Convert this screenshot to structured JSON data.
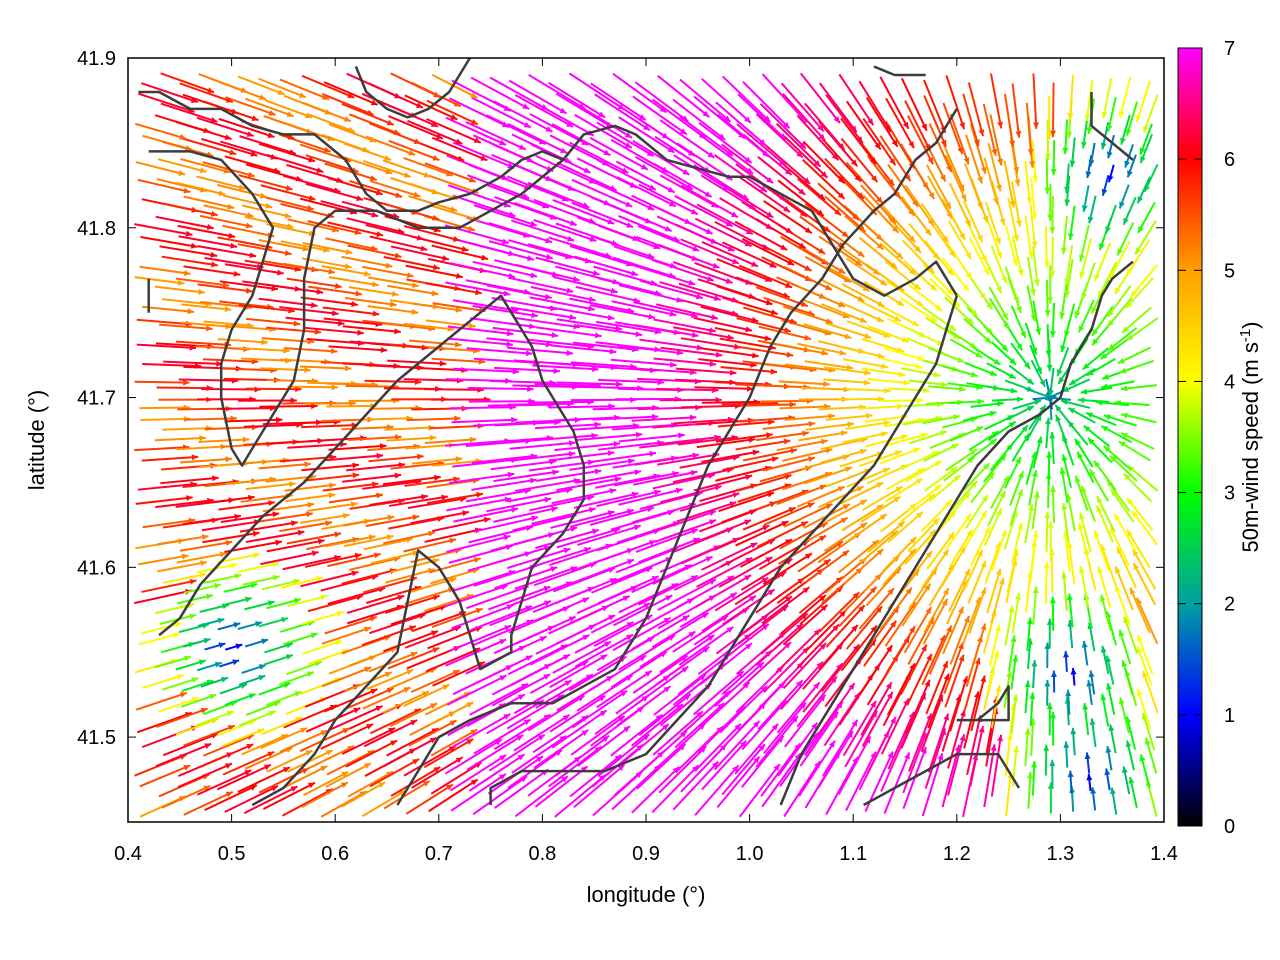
{
  "chart_data": {
    "type": "vector-field",
    "title": "",
    "xlabel": "longitude (°)",
    "ylabel": "latitude (°)",
    "xlim": [
      0.4,
      1.4
    ],
    "ylim": [
      41.45,
      41.9
    ],
    "xticks": [
      "0.4",
      "0.5",
      "0.6",
      "0.7",
      "0.8",
      "0.9",
      "1.0",
      "1.1",
      "1.2",
      "1.3",
      "1.4"
    ],
    "yticks": [
      "41.5",
      "41.6",
      "41.7",
      "41.8",
      "41.9"
    ],
    "colorbar": {
      "label": "50m-wind speed (m s",
      "label_sup": "-1",
      "label_end": ")",
      "range": [
        0,
        7
      ],
      "ticks": [
        "0",
        "1",
        "2",
        "3",
        "4",
        "5",
        "6",
        "7"
      ],
      "palette": [
        "#000000",
        "#0000ff",
        "#00a0a0",
        "#00ff00",
        "#ffff00",
        "#ffa000",
        "#ff0000",
        "#ff00ff"
      ]
    },
    "wind_field": {
      "convergence_center": [
        1.29,
        41.7
      ],
      "secondary_calm_centers": [
        [
          1.31,
          41.53
        ],
        [
          1.33,
          41.47
        ],
        [
          1.35,
          41.84
        ],
        [
          0.49,
          41.55
        ]
      ],
      "max_speed": 7,
      "grid_step_deg": [
        0.02,
        0.012
      ]
    },
    "contours": [
      [
        [
          0.41,
          41.88
        ],
        [
          0.43,
          41.88
        ],
        [
          0.46,
          41.87
        ],
        [
          0.49,
          41.87
        ],
        [
          0.52,
          41.86
        ],
        [
          0.55,
          41.855
        ],
        [
          0.58,
          41.855
        ],
        [
          0.61,
          41.84
        ],
        [
          0.63,
          41.82
        ],
        [
          0.65,
          41.81
        ],
        [
          0.68,
          41.81
        ],
        [
          0.7,
          41.815
        ],
        [
          0.73,
          41.82
        ],
        [
          0.76,
          41.83
        ],
        [
          0.78,
          41.84
        ],
        [
          0.8,
          41.845
        ],
        [
          0.82,
          41.84
        ],
        [
          0.84,
          41.855
        ],
        [
          0.87,
          41.86
        ],
        [
          0.89,
          41.855
        ],
        [
          0.92,
          41.84
        ],
        [
          0.95,
          41.835
        ],
        [
          0.98,
          41.83
        ],
        [
          1.0,
          41.83
        ],
        [
          1.03,
          41.82
        ],
        [
          1.06,
          41.81
        ],
        [
          1.08,
          41.79
        ],
        [
          1.1,
          41.77
        ],
        [
          1.13,
          41.76
        ],
        [
          1.16,
          41.77
        ],
        [
          1.18,
          41.78
        ],
        [
          1.19,
          41.77
        ],
        [
          1.2,
          41.76
        ]
      ],
      [
        [
          0.42,
          41.845
        ],
        [
          0.46,
          41.845
        ],
        [
          0.49,
          41.84
        ],
        [
          0.52,
          41.82
        ],
        [
          0.54,
          41.8
        ],
        [
          0.53,
          41.78
        ],
        [
          0.52,
          41.76
        ],
        [
          0.5,
          41.74
        ],
        [
          0.49,
          41.72
        ],
        [
          0.49,
          41.7
        ],
        [
          0.5,
          41.67
        ],
        [
          0.51,
          41.66
        ],
        [
          0.54,
          41.69
        ],
        [
          0.56,
          41.71
        ],
        [
          0.57,
          41.74
        ],
        [
          0.57,
          41.77
        ],
        [
          0.58,
          41.8
        ],
        [
          0.6,
          41.81
        ],
        [
          0.64,
          41.81
        ],
        [
          0.68,
          41.8
        ],
        [
          0.72,
          41.8
        ],
        [
          0.75,
          41.81
        ],
        [
          0.78,
          41.82
        ],
        [
          0.82,
          41.84
        ]
      ],
      [
        [
          0.42,
          41.77
        ],
        [
          0.42,
          41.75
        ]
      ],
      [
        [
          0.62,
          41.895
        ],
        [
          0.63,
          41.88
        ],
        [
          0.65,
          41.87
        ],
        [
          0.67,
          41.865
        ],
        [
          0.69,
          41.87
        ],
        [
          0.71,
          41.88
        ],
        [
          0.72,
          41.89
        ],
        [
          0.73,
          41.9
        ]
      ],
      [
        [
          0.43,
          41.56
        ],
        [
          0.45,
          41.57
        ],
        [
          0.47,
          41.59
        ],
        [
          0.5,
          41.61
        ],
        [
          0.53,
          41.63
        ],
        [
          0.57,
          41.65
        ],
        [
          0.6,
          41.67
        ],
        [
          0.63,
          41.69
        ],
        [
          0.66,
          41.71
        ],
        [
          0.68,
          41.72
        ],
        [
          0.72,
          41.74
        ],
        [
          0.76,
          41.76
        ],
        [
          0.79,
          41.73
        ],
        [
          0.8,
          41.71
        ],
        [
          0.83,
          41.68
        ],
        [
          0.84,
          41.66
        ],
        [
          0.84,
          41.64
        ],
        [
          0.82,
          41.62
        ],
        [
          0.79,
          41.6
        ],
        [
          0.78,
          41.58
        ],
        [
          0.77,
          41.56
        ],
        [
          0.77,
          41.55
        ],
        [
          0.74,
          41.54
        ],
        [
          0.73,
          41.56
        ],
        [
          0.72,
          41.58
        ],
        [
          0.7,
          41.6
        ],
        [
          0.68,
          41.61
        ],
        [
          0.67,
          41.58
        ],
        [
          0.66,
          41.55
        ],
        [
          0.63,
          41.53
        ],
        [
          0.6,
          41.51
        ],
        [
          0.58,
          41.49
        ],
        [
          0.55,
          41.47
        ],
        [
          0.52,
          41.46
        ]
      ],
      [
        [
          0.75,
          41.46
        ],
        [
          0.75,
          41.47
        ],
        [
          0.78,
          41.48
        ],
        [
          0.82,
          41.48
        ],
        [
          0.86,
          41.48
        ],
        [
          0.9,
          41.49
        ],
        [
          0.93,
          41.51
        ],
        [
          0.96,
          41.53
        ],
        [
          0.99,
          41.56
        ],
        [
          1.01,
          41.58
        ],
        [
          1.03,
          41.6
        ],
        [
          1.06,
          41.62
        ],
        [
          1.09,
          41.64
        ],
        [
          1.12,
          41.66
        ],
        [
          1.15,
          41.69
        ],
        [
          1.18,
          41.72
        ],
        [
          1.19,
          41.74
        ],
        [
          1.2,
          41.76
        ]
      ],
      [
        [
          0.66,
          41.46
        ],
        [
          0.68,
          41.48
        ],
        [
          0.7,
          41.5
        ],
        [
          0.73,
          41.51
        ],
        [
          0.77,
          41.52
        ],
        [
          0.81,
          41.52
        ],
        [
          0.84,
          41.53
        ],
        [
          0.87,
          41.54
        ],
        [
          0.9,
          41.57
        ],
        [
          0.92,
          41.6
        ],
        [
          0.94,
          41.63
        ],
        [
          0.96,
          41.66
        ],
        [
          0.98,
          41.68
        ],
        [
          1.0,
          41.7
        ],
        [
          1.02,
          41.73
        ],
        [
          1.04,
          41.75
        ],
        [
          1.07,
          41.77
        ],
        [
          1.09,
          41.79
        ],
        [
          1.12,
          41.81
        ],
        [
          1.14,
          41.82
        ],
        [
          1.16,
          41.84
        ],
        [
          1.18,
          41.85
        ],
        [
          1.2,
          41.87
        ]
      ],
      [
        [
          1.03,
          41.46
        ],
        [
          1.05,
          41.49
        ],
        [
          1.08,
          41.52
        ],
        [
          1.11,
          41.55
        ],
        [
          1.14,
          41.58
        ],
        [
          1.16,
          41.6
        ],
        [
          1.18,
          41.62
        ],
        [
          1.2,
          41.64
        ],
        [
          1.22,
          41.66
        ],
        [
          1.25,
          41.68
        ],
        [
          1.28,
          41.69
        ],
        [
          1.3,
          41.7
        ],
        [
          1.31,
          41.72
        ],
        [
          1.33,
          41.74
        ],
        [
          1.34,
          41.76
        ],
        [
          1.35,
          41.77
        ],
        [
          1.37,
          41.78
        ]
      ],
      [
        [
          1.11,
          41.46
        ],
        [
          1.14,
          41.47
        ],
        [
          1.17,
          41.48
        ],
        [
          1.2,
          41.49
        ],
        [
          1.24,
          41.49
        ],
        [
          1.26,
          41.47
        ]
      ],
      [
        [
          1.2,
          41.51
        ],
        [
          1.22,
          41.51
        ],
        [
          1.24,
          41.52
        ],
        [
          1.25,
          41.53
        ],
        [
          1.25,
          41.51
        ],
        [
          1.22,
          41.51
        ]
      ],
      [
        [
          1.33,
          41.88
        ],
        [
          1.33,
          41.86
        ],
        [
          1.35,
          41.85
        ],
        [
          1.37,
          41.84
        ]
      ],
      [
        [
          1.12,
          41.895
        ],
        [
          1.14,
          41.89
        ],
        [
          1.17,
          41.89
        ]
      ]
    ]
  }
}
